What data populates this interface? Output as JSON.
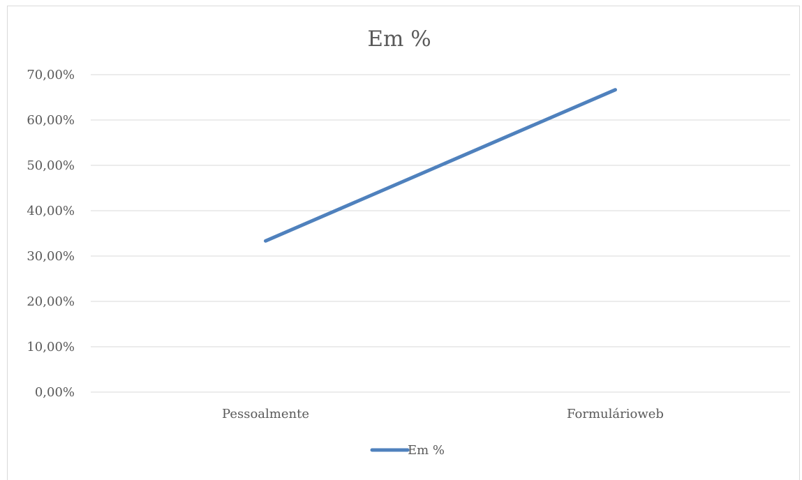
{
  "chart_data": {
    "type": "line",
    "title": "Em %",
    "categories": [
      "Pessoalmente",
      "Formulárioweb"
    ],
    "series": [
      {
        "name": "Em %",
        "values": [
          33.33,
          66.67
        ],
        "color": "#4f81bd"
      }
    ],
    "y_ticks": [
      "0,00%",
      "10,00%",
      "20,00%",
      "30,00%",
      "40,00%",
      "50,00%",
      "60,00%",
      "70,00%"
    ],
    "ylim": [
      0,
      70
    ],
    "grid": true,
    "legend_position": "bottom"
  }
}
